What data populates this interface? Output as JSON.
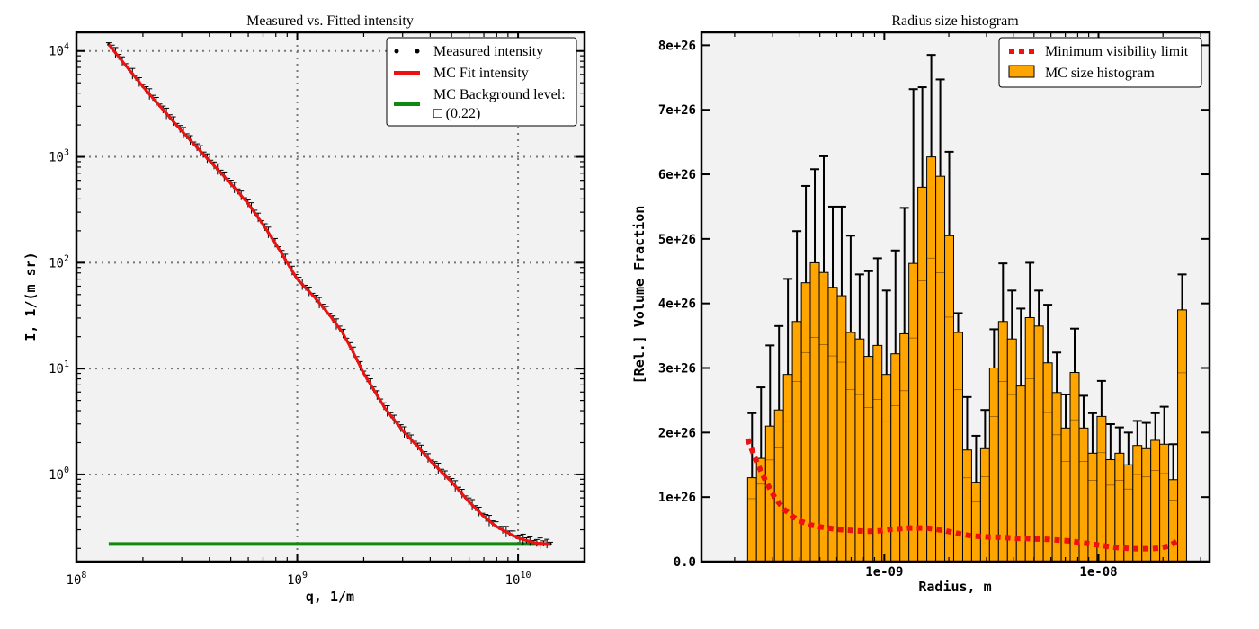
{
  "chart_data": [
    {
      "type": "scatter",
      "title": "Measured vs. Fitted intensity",
      "xlabel": "q, 1/m",
      "ylabel": "I, 1/(m sr)",
      "xscale": "log",
      "yscale": "log",
      "xlim": [
        100000000.0,
        20000000000.0
      ],
      "ylim": [
        0.15,
        15000
      ],
      "grid": true,
      "legend_position": "top-right",
      "xticks": [
        {
          "v": 100000000.0,
          "base": "10",
          "exp": "8"
        },
        {
          "v": 1000000000.0,
          "base": "10",
          "exp": "9"
        },
        {
          "v": 10000000000.0,
          "base": "10",
          "exp": "10"
        }
      ],
      "yticks": [
        {
          "v": 1,
          "base": "10",
          "exp": "0"
        },
        {
          "v": 10,
          "base": "10",
          "exp": "1"
        },
        {
          "v": 100,
          "base": "10",
          "exp": "2"
        },
        {
          "v": 1000,
          "base": "10",
          "exp": "3"
        },
        {
          "v": 10000,
          "base": "10",
          "exp": "4"
        }
      ],
      "legend": [
        {
          "label": "Measured intensity",
          "style": "dots",
          "color": "#000000"
        },
        {
          "label": "MC Fit intensity",
          "style": "line",
          "color": "#ee1111"
        },
        {
          "label": "MC Background level:",
          "label2": "□ (0.22)",
          "style": "line",
          "color": "#118811"
        }
      ],
      "series": [
        {
          "name": "Measured intensity",
          "color": "#000000",
          "points": [
            [
              140000000.0,
              11500
            ],
            [
              200000000.0,
              4600
            ],
            [
              300000000.0,
              1750
            ],
            [
              400000000.0,
              920
            ],
            [
              500000000.0,
              560
            ],
            [
              600000000.0,
              360
            ],
            [
              700000000.0,
              230
            ],
            [
              800000000.0,
              150
            ],
            [
              1000000000.0,
              70
            ],
            [
              1200000000.0,
              47
            ],
            [
              1400000000.0,
              32
            ],
            [
              1600000000.0,
              22
            ],
            [
              1800000000.0,
              14
            ],
            [
              2000000000.0,
              9
            ],
            [
              2500000000.0,
              4.2
            ],
            [
              3000000000.0,
              2.6
            ],
            [
              3500000000.0,
              1.85
            ],
            [
              4000000000.0,
              1.35
            ],
            [
              5000000000.0,
              0.85
            ],
            [
              6000000000.0,
              0.55
            ],
            [
              7000000000.0,
              0.4
            ],
            [
              8000000000.0,
              0.32
            ],
            [
              10000000000.0,
              0.25
            ],
            [
              12000000000.0,
              0.225
            ],
            [
              14000000000.0,
              0.22
            ]
          ]
        },
        {
          "name": "MC Fit intensity",
          "color": "#ee1111",
          "points": [
            [
              140000000.0,
              11500
            ],
            [
              200000000.0,
              4600
            ],
            [
              300000000.0,
              1750
            ],
            [
              400000000.0,
              920
            ],
            [
              500000000.0,
              560
            ],
            [
              600000000.0,
              360
            ],
            [
              700000000.0,
              230
            ],
            [
              800000000.0,
              150
            ],
            [
              1000000000.0,
              70
            ],
            [
              1200000000.0,
              47
            ],
            [
              1400000000.0,
              32
            ],
            [
              1600000000.0,
              22
            ],
            [
              1800000000.0,
              14
            ],
            [
              2000000000.0,
              9
            ],
            [
              2500000000.0,
              4.2
            ],
            [
              3000000000.0,
              2.6
            ],
            [
              3500000000.0,
              1.85
            ],
            [
              4000000000.0,
              1.35
            ],
            [
              5000000000.0,
              0.85
            ],
            [
              6000000000.0,
              0.55
            ],
            [
              7000000000.0,
              0.4
            ],
            [
              8000000000.0,
              0.32
            ],
            [
              10000000000.0,
              0.25
            ],
            [
              12000000000.0,
              0.225
            ],
            [
              14000000000.0,
              0.22
            ]
          ]
        },
        {
          "name": "MC Background level",
          "color": "#118811",
          "points": [
            [
              140000000.0,
              0.22
            ],
            [
              14000000000.0,
              0.22
            ]
          ]
        }
      ]
    },
    {
      "type": "bar",
      "title": "Radius size histogram",
      "xlabel": "Radius, m",
      "ylabel": "[Rel.] Volume Fraction",
      "xscale": "log",
      "xlim": [
        1.4e-10,
        3.3e-08
      ],
      "ylim": [
        0,
        8.2e+26
      ],
      "legend_position": "top-right",
      "xticks": [
        {
          "v": 1e-09,
          "label": "1e-09"
        },
        {
          "v": 1e-08,
          "label": "1e-08"
        }
      ],
      "yticks": [
        {
          "v": 0,
          "label": "0.0"
        },
        {
          "v": 1e+26,
          "label": "1e+26"
        },
        {
          "v": 2e+26,
          "label": "2e+26"
        },
        {
          "v": 3e+26,
          "label": "3e+26"
        },
        {
          "v": 4e+26,
          "label": "4e+26"
        },
        {
          "v": 5e+26,
          "label": "5e+26"
        },
        {
          "v": 6e+26,
          "label": "6e+26"
        },
        {
          "v": 7e+26,
          "label": "7e+26"
        },
        {
          "v": 8e+26,
          "label": "8e+26"
        }
      ],
      "legend": [
        {
          "label": "Minimum visibility limit",
          "style": "dashed",
          "color": "#ee1111"
        },
        {
          "label": "MC size histogram",
          "style": "patch",
          "color": "#ffa500"
        }
      ],
      "bin_edges": [
        2.3e-10,
        2.53e-10,
        2.79e-10,
        3.07e-10,
        3.38e-10,
        3.72e-10,
        4.1e-10,
        4.51e-10,
        4.97e-10,
        5.47e-10,
        6.03e-10,
        6.63e-10,
        7.31e-10,
        8.04e-10,
        8.86e-10,
        9.75e-10,
        1.074e-09,
        1.183e-09,
        1.302e-09,
        1.434e-09,
        1.579e-09,
        1.739e-09,
        1.915e-09,
        2.108e-09,
        2.322e-09,
        2.556e-09,
        2.815e-09,
        3.099e-09,
        3.413e-09,
        3.758e-09,
        4.138e-09,
        4.556e-09,
        5.017e-09,
        5.524e-09,
        6.083e-09,
        6.698e-09,
        7.375e-09,
        8.121e-09,
        8.942e-09,
        9.846e-09,
        1.084e-08,
        1.194e-08,
        1.315e-08,
        1.448e-08,
        1.594e-08,
        1.755e-08,
        1.932e-08,
        2.128e-08,
        2.343e-08
      ],
      "values": [
        1.3e+26,
        1.6e+26,
        2.1e+26,
        2.35e+26,
        2.9e+26,
        3.72e+26,
        4.32e+26,
        4.63e+26,
        4.48e+26,
        4.25e+26,
        4.12e+26,
        3.55e+26,
        3.45e+26,
        3.18e+26,
        3.35e+26,
        2.9e+26,
        3.22e+26,
        3.53e+26,
        4.62e+26,
        5.8e+26,
        6.27e+26,
        5.97e+26,
        5.05e+26,
        3.55e+26,
        1.73e+26,
        1.23e+26,
        1.75e+26,
        3e+26,
        3.72e+26,
        3.45e+26,
        2.72e+26,
        3.78e+26,
        3.65e+26,
        3.08e+26,
        2.62e+26,
        2.07e+26,
        2.93e+26,
        2.07e+26,
        1.68e+26,
        2.25e+26,
        1.58e+26,
        1.68e+26,
        1.5e+26,
        1.8e+26,
        1.75e+26,
        1.88e+26,
        1.82e+26,
        1.27e+26,
        3.9e+26
      ],
      "errors": [
        1e+26,
        1.1e+26,
        1.25e+26,
        1.3e+26,
        1.48e+26,
        1.4e+26,
        1.5e+26,
        1.45e+26,
        1.8e+26,
        1.25e+26,
        1.38e+26,
        1.5e+26,
        1e+26,
        1.32e+26,
        1.35e+26,
        1.3e+26,
        1.6e+26,
        1.95e+26,
        2.7e+26,
        1.55e+26,
        1.58e+26,
        1.5e+26,
        1.3e+26,
        3e+25,
        8.2e+25,
        7.2e+25,
        6e+25,
        6e+25,
        9e+25,
        7.5e+25,
        1.2e+26,
        8.5e+25,
        5.5e+25,
        9e+25,
        6.2e+25,
        5.2e+25,
        6.8e+25,
        5e+25,
        6.2e+25,
        5.5e+25,
        5.5e+25,
        4e+25,
        5e+25,
        3.8e+25,
        4e+25,
        4.2e+25,
        5.8e+25,
        5.5e+25,
        5.5e+25
      ],
      "min_visibility": {
        "name": "Minimum visibility limit",
        "radius": [
          2.3e-10,
          2.53e-10,
          2.79e-10,
          3.07e-10,
          3.38e-10,
          3.72e-10,
          4.1e-10,
          4.51e-10,
          4.97e-10,
          5.47e-10,
          6.03e-10,
          6.63e-10,
          7.31e-10,
          8.04e-10,
          8.86e-10,
          9.75e-10,
          1.074e-09,
          1.183e-09,
          1.302e-09,
          1.434e-09,
          1.579e-09,
          1.739e-09,
          1.915e-09,
          2.108e-09,
          2.322e-09,
          2.556e-09,
          2.815e-09,
          3.099e-09,
          3.413e-09,
          3.758e-09,
          4.138e-09,
          4.556e-09,
          5.017e-09,
          5.524e-09,
          6.083e-09,
          6.698e-09,
          7.375e-09,
          8.121e-09,
          8.942e-09,
          9.846e-09,
          1.084e-08,
          1.194e-08,
          1.315e-08,
          1.448e-08,
          1.594e-08,
          1.755e-08,
          1.932e-08,
          2.128e-08,
          2.343e-08
        ],
        "values": [
          1.9e+26,
          1.55e+26,
          1.25e+26,
          1e+26,
          8.2e+25,
          7e+25,
          6.2e+25,
          5.7e+25,
          5.4e+25,
          5.2e+25,
          5e+25,
          4.9e+25,
          4.8e+25,
          4.7e+25,
          4.7e+25,
          4.8e+25,
          5e+25,
          5.1e+25,
          5.2e+25,
          5.2e+25,
          5.2e+25,
          5e+25,
          4.8e+25,
          4.5e+25,
          4.2e+25,
          4e+25,
          3.9e+25,
          3.8e+25,
          3.8e+25,
          3.7e+25,
          3.6e+25,
          3.6e+25,
          3.5e+25,
          3.5e+25,
          3.4e+25,
          3.3e+25,
          3.2e+25,
          3e+25,
          2.8e+25,
          2.6e+25,
          2.4e+25,
          2.2e+25,
          2.1e+25,
          2e+25,
          2e+25,
          2e+25,
          2.1e+25,
          2.4e+25,
          3.2e+25
        ]
      }
    }
  ]
}
